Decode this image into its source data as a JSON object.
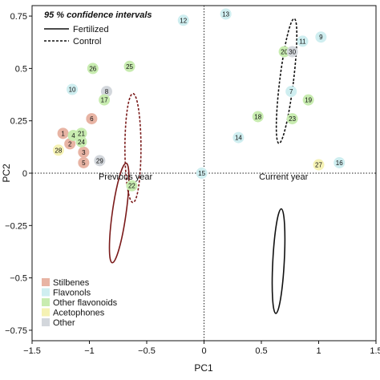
{
  "chart_data": {
    "type": "scatter",
    "xlabel": "PC1",
    "ylabel": "PC2",
    "xlim": [
      -1.5,
      1.5
    ],
    "ylim": [
      -0.8,
      0.8
    ],
    "xticks": [
      {
        "v": -1.5,
        "label": "−1.5"
      },
      {
        "v": -1,
        "label": "−1"
      },
      {
        "v": -0.5,
        "label": "−0.5"
      },
      {
        "v": 0,
        "label": "0"
      },
      {
        "v": 0.5,
        "label": "0.5"
      },
      {
        "v": 1,
        "label": "1"
      },
      {
        "v": 1.5,
        "label": "1.5"
      }
    ],
    "yticks": [
      {
        "v": 0.75,
        "label": "0.75"
      },
      {
        "v": 0.5,
        "label": "0.5"
      },
      {
        "v": 0.25,
        "label": "0.25"
      },
      {
        "v": 0,
        "label": "0"
      },
      {
        "v": -0.25,
        "label": "−0.25"
      },
      {
        "v": -0.5,
        "label": "−0.5"
      },
      {
        "v": -0.75,
        "label": "−0.75"
      }
    ],
    "reference_lines": {
      "x": 0,
      "y": 0,
      "style": "dotted"
    },
    "categories": [
      {
        "name": "Stilbenes",
        "color": "#e8b4a4"
      },
      {
        "name": "Flavonols",
        "color": "#cfeef0"
      },
      {
        "name": "Other flavonoids",
        "color": "#c8ecb0"
      },
      {
        "name": "Acetophones",
        "color": "#f5f2b4"
      },
      {
        "name": "Other",
        "color": "#d3d7dc"
      }
    ],
    "points": [
      {
        "label": "1",
        "x": -1.23,
        "y": 0.19,
        "category": "Stilbenes"
      },
      {
        "label": "2",
        "x": -1.17,
        "y": 0.14,
        "category": "Stilbenes"
      },
      {
        "label": "3",
        "x": -1.05,
        "y": 0.1,
        "category": "Stilbenes"
      },
      {
        "label": "5",
        "x": -1.05,
        "y": 0.05,
        "category": "Stilbenes"
      },
      {
        "label": "6",
        "x": -0.98,
        "y": 0.26,
        "category": "Stilbenes"
      },
      {
        "label": "4",
        "x": -1.14,
        "y": 0.18,
        "category": "Other flavonoids"
      },
      {
        "label": "21",
        "x": -1.07,
        "y": 0.19,
        "category": "Other flavonoids"
      },
      {
        "label": "24",
        "x": -1.07,
        "y": 0.15,
        "category": "Other flavonoids"
      },
      {
        "label": "28",
        "x": -1.27,
        "y": 0.11,
        "category": "Acetophones"
      },
      {
        "label": "29",
        "x": -0.91,
        "y": 0.06,
        "category": "Other"
      },
      {
        "label": "26",
        "x": -0.97,
        "y": 0.5,
        "category": "Other flavonoids"
      },
      {
        "label": "25",
        "x": -0.65,
        "y": 0.51,
        "category": "Other flavonoids"
      },
      {
        "label": "10",
        "x": -1.15,
        "y": 0.4,
        "category": "Flavonols"
      },
      {
        "label": "8",
        "x": -0.85,
        "y": 0.39,
        "category": "Other"
      },
      {
        "label": "17",
        "x": -0.87,
        "y": 0.35,
        "category": "Other flavonoids"
      },
      {
        "label": "12",
        "x": -0.18,
        "y": 0.73,
        "category": "Flavonols"
      },
      {
        "label": "15",
        "x": -0.02,
        "y": 0.0,
        "category": "Flavonols"
      },
      {
        "label": "22",
        "x": -0.63,
        "y": -0.06,
        "category": "Other flavonoids"
      },
      {
        "label": "13",
        "x": 0.19,
        "y": 0.76,
        "category": "Flavonols"
      },
      {
        "label": "9",
        "x": 1.02,
        "y": 0.65,
        "category": "Flavonols"
      },
      {
        "label": "11",
        "x": 0.86,
        "y": 0.63,
        "category": "Flavonols"
      },
      {
        "label": "20",
        "x": 0.7,
        "y": 0.58,
        "category": "Other flavonoids"
      },
      {
        "label": "30",
        "x": 0.77,
        "y": 0.58,
        "category": "Other"
      },
      {
        "label": "7",
        "x": 0.76,
        "y": 0.39,
        "category": "Flavonols"
      },
      {
        "label": "19",
        "x": 0.91,
        "y": 0.35,
        "category": "Other flavonoids"
      },
      {
        "label": "18",
        "x": 0.47,
        "y": 0.27,
        "category": "Other flavonoids"
      },
      {
        "label": "23",
        "x": 0.77,
        "y": 0.26,
        "category": "Other flavonoids"
      },
      {
        "label": "14",
        "x": 0.3,
        "y": 0.17,
        "category": "Flavonols"
      },
      {
        "label": "27",
        "x": 1.0,
        "y": 0.04,
        "category": "Acetophones"
      },
      {
        "label": "16",
        "x": 1.18,
        "y": 0.05,
        "category": "Flavonols"
      }
    ],
    "ellipses": [
      {
        "series": "Fertilized",
        "cx": -0.74,
        "cy": -0.19,
        "rx": 0.06,
        "ry": 0.24,
        "rotation_deg": 8,
        "color": "#7a1a1a",
        "dash": "solid"
      },
      {
        "series": "Control",
        "cx": -0.62,
        "cy": 0.12,
        "rx": 0.07,
        "ry": 0.26,
        "rotation_deg": 0,
        "color": "#7a1a1a",
        "dash": "dashed"
      },
      {
        "series": "Fertilized",
        "cx": 0.65,
        "cy": -0.42,
        "rx": 0.05,
        "ry": 0.25,
        "rotation_deg": 3,
        "color": "#111111",
        "dash": "solid"
      },
      {
        "series": "Control",
        "cx": 0.72,
        "cy": 0.44,
        "rx": 0.06,
        "ry": 0.3,
        "rotation_deg": 7,
        "color": "#111111",
        "dash": "dashed"
      }
    ],
    "line_legend": {
      "title": "95 % confidence intervals",
      "entries": [
        {
          "name": "Fertilized",
          "dash": "solid"
        },
        {
          "name": "Control",
          "dash": "dashed"
        }
      ],
      "placement": "top-left"
    },
    "category_legend_placement": "bottom-left",
    "annotations": [
      {
        "text": "Previous year",
        "x": -0.92,
        "y": -0.03
      },
      {
        "text": "Current year",
        "x": 0.48,
        "y": -0.03
      }
    ]
  }
}
